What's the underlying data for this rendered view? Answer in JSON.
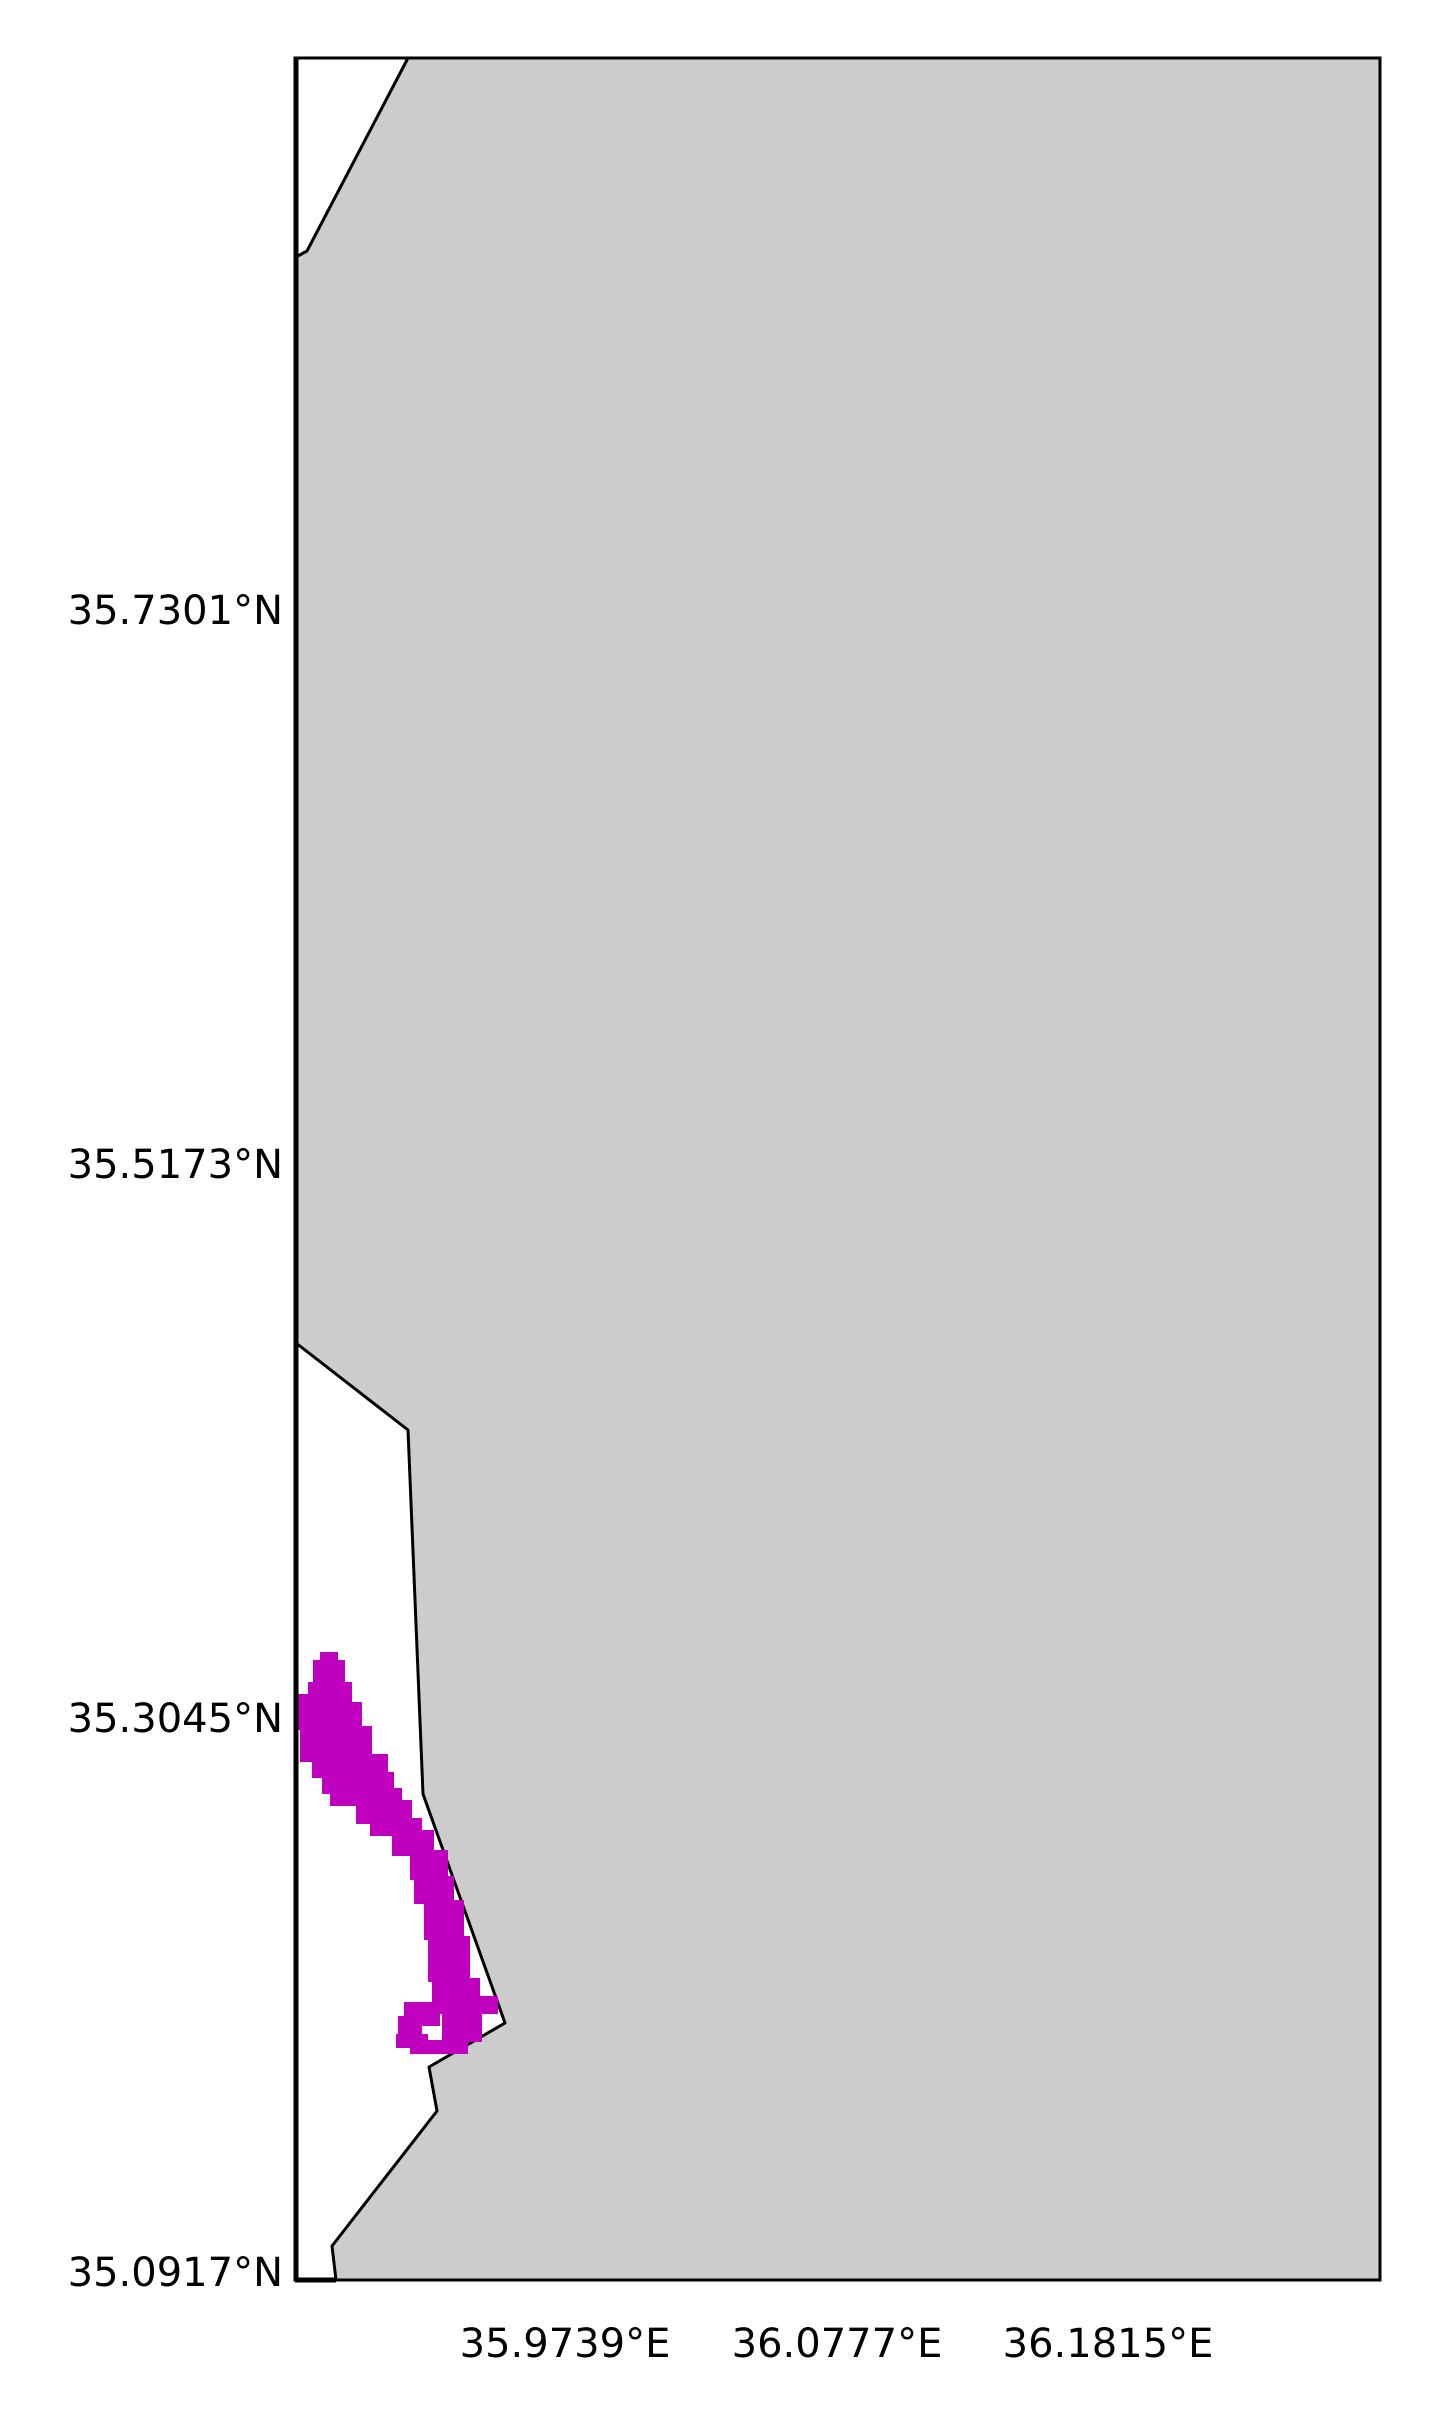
{
  "map": {
    "type": "coastline-map",
    "colors": {
      "land": "#cccccc",
      "sea": "#ffffff",
      "coastline": "#000000",
      "frame": "#000000",
      "data_region": "#bf00bf"
    },
    "latitude_ticks": [
      "35.7301°N",
      "35.5173°N",
      "35.3045°N",
      "35.0917°N"
    ],
    "longitude_ticks": [
      "35.9739°E",
      "36.0777°E",
      "36.1815°E"
    ],
    "highlighted_region": "magenta coastal cells along western shoreline"
  }
}
